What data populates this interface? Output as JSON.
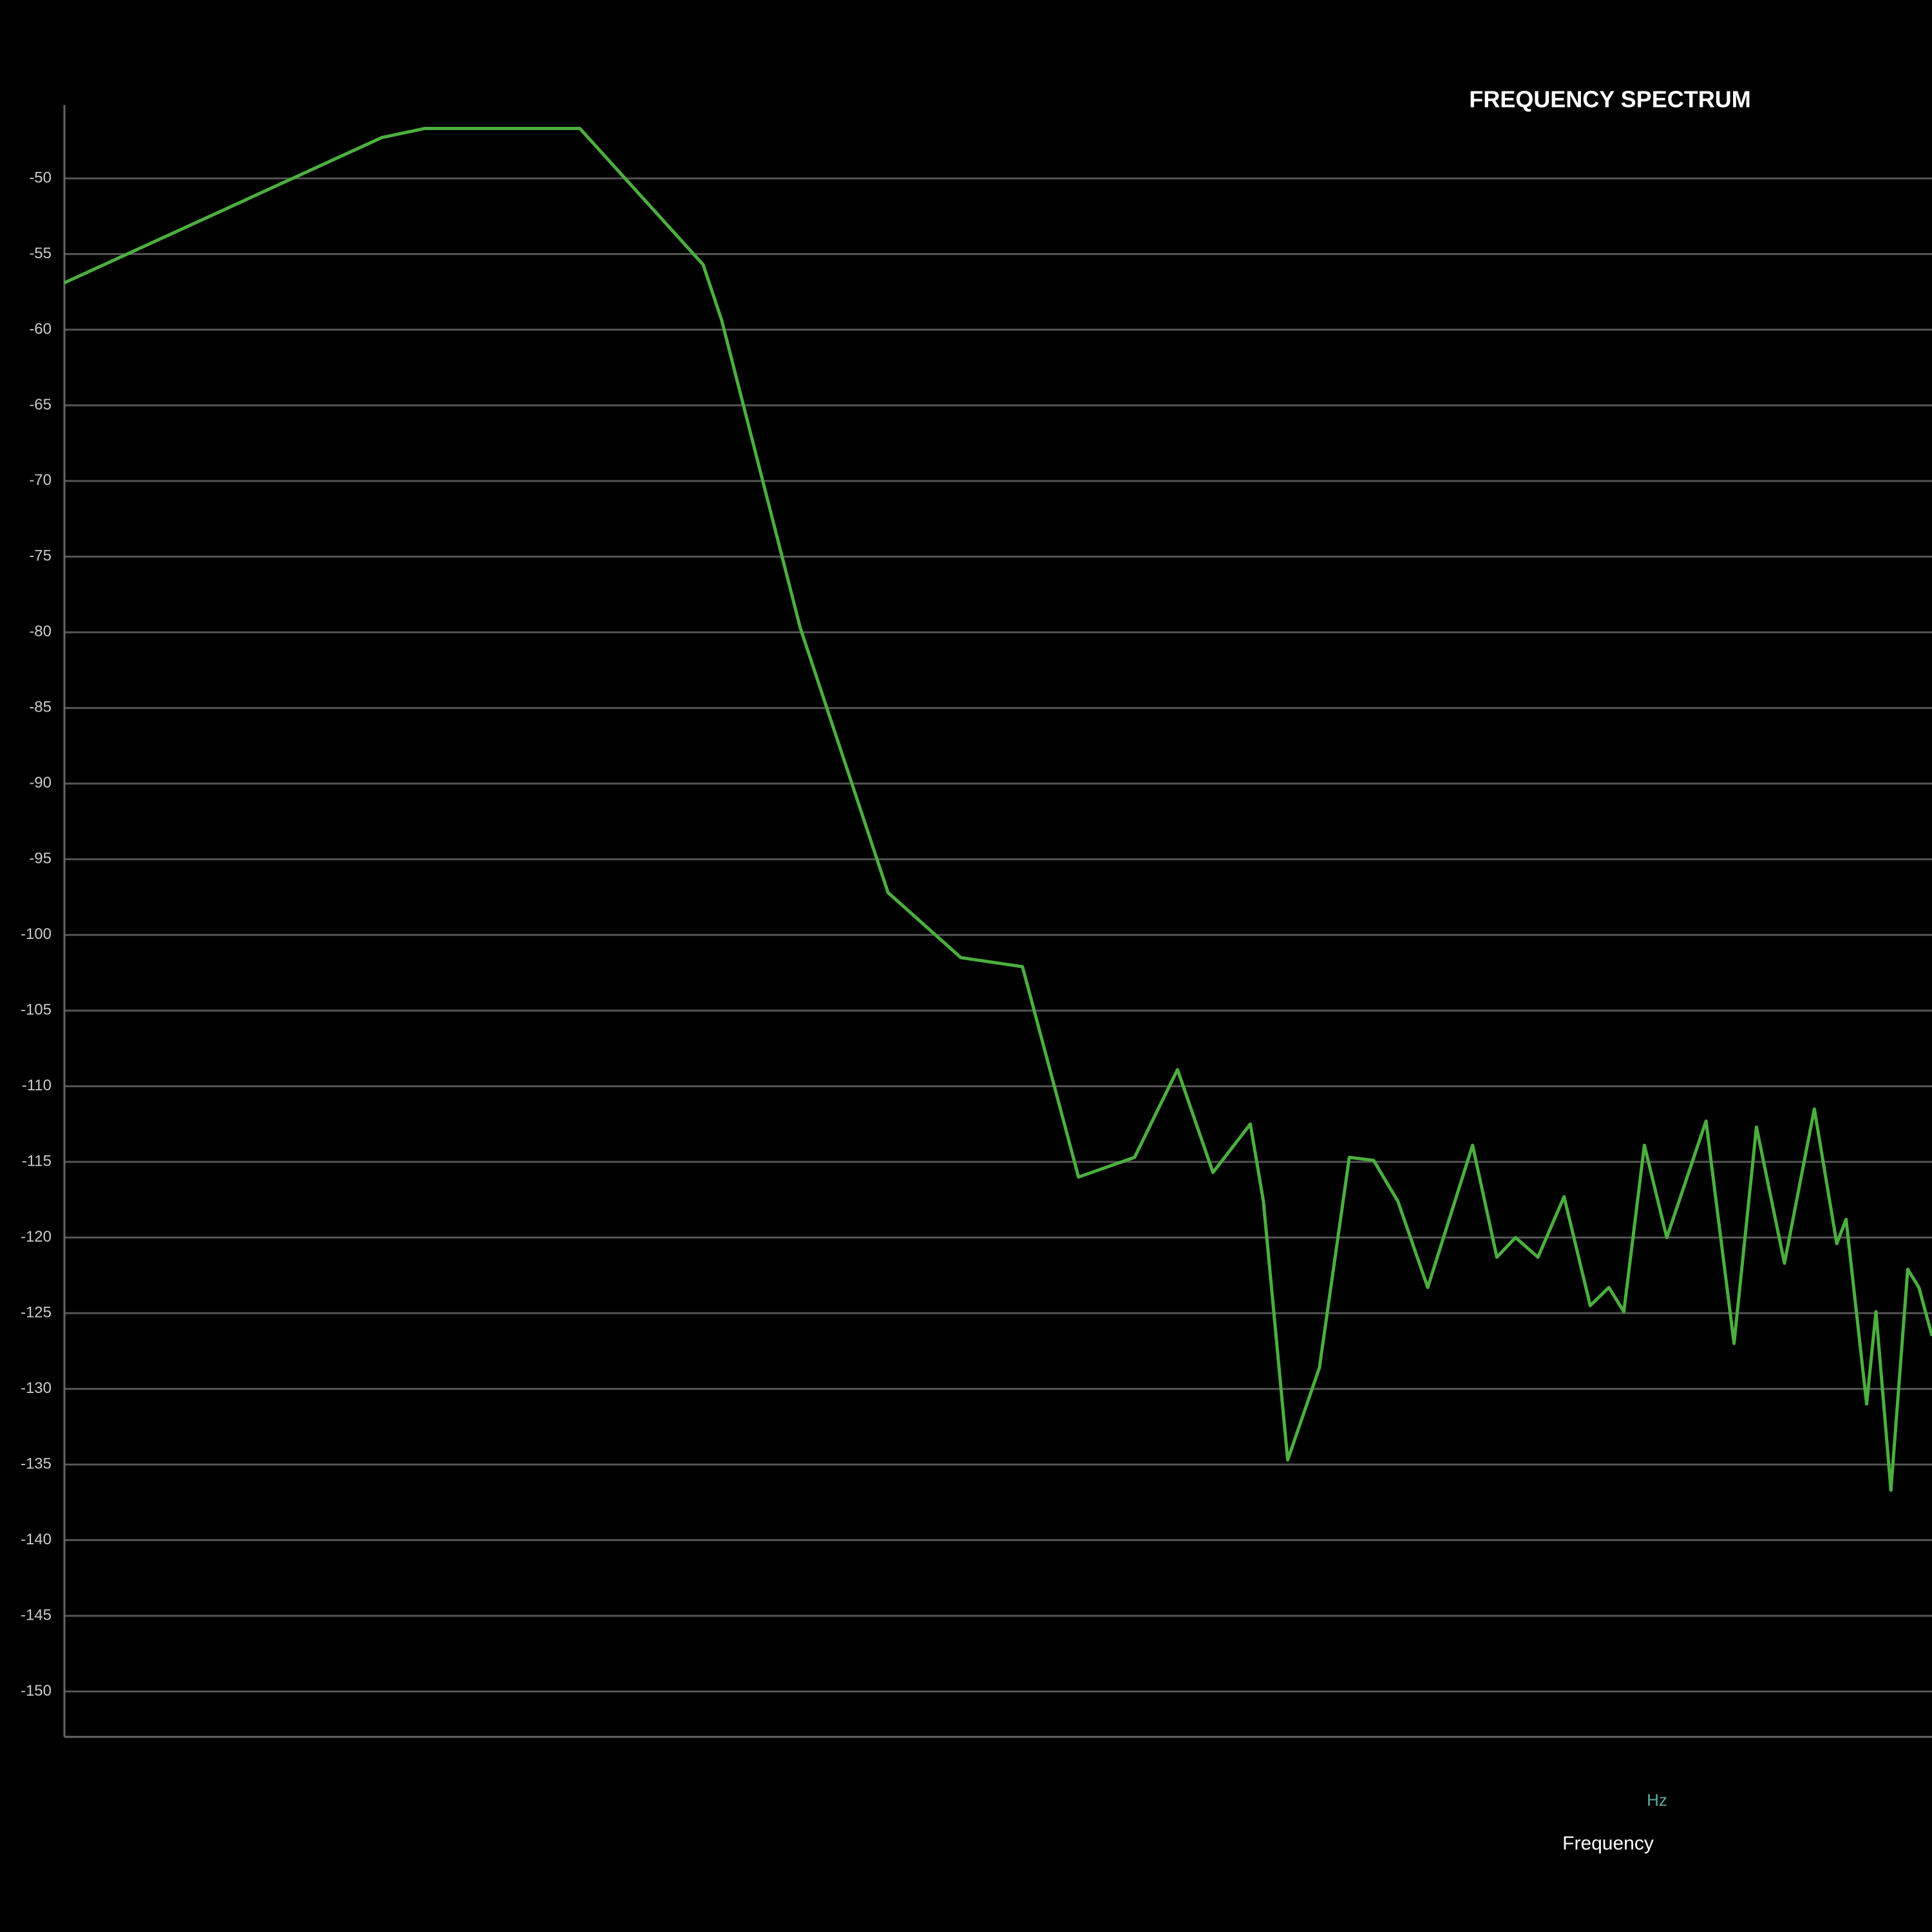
{
  "chart_data": {
    "type": "line",
    "title": "FREQUENCY SPECTRUM",
    "x_unit": "Hz",
    "x_label": "Frequency",
    "x": [
      0,
      17.0,
      19.3,
      25.9,
      27.6,
      34.2,
      35.2,
      39.4,
      44.1,
      48.0,
      51.3,
      54.3,
      57.3,
      59.6,
      61.5,
      63.5,
      64.2,
      65.5,
      67.2,
      68.8,
      70.1,
      71.4,
      73.0,
      75.4,
      76.7,
      77.7,
      78.9,
      80.3,
      81.7,
      82.7,
      83.5,
      84.6,
      85.8,
      87.9,
      89.4,
      90.6,
      92.1,
      93.7,
      94.9,
      95.4,
      96.5,
      97.0,
      97.8,
      98.7,
      99.3,
      100
    ],
    "series": [
      {
        "color": "#4caf3f",
        "values": [
          -56.9,
          -47.3,
          -46.7,
          -46.7,
          -46.7,
          -55.7,
          -59.4,
          -79.7,
          -97.2,
          -101.5,
          -102.1,
          -116.0,
          -114.7,
          -108.9,
          -115.7,
          -112.5,
          -117.6,
          -134.7,
          -128.6,
          -114.7,
          -114.9,
          -117.6,
          -123.3,
          -113.9,
          -121.3,
          -120.0,
          -121.3,
          -117.3,
          -124.5,
          -123.3,
          -124.9,
          -113.9,
          -120.0,
          -112.3,
          -127.0,
          -112.7,
          -121.7,
          -111.5,
          -120.4,
          -118.8,
          -131.0,
          -124.9,
          -136.7,
          -122.1,
          -123.3,
          -126.5
        ]
      }
    ],
    "xlim": [
      0,
      100
    ],
    "ylim": [
      -153,
      -46
    ],
    "yticks": [
      -50,
      -55,
      -60,
      -65,
      -70,
      -75,
      -80,
      -85,
      -90,
      -95,
      -100,
      -105,
      -110,
      -115,
      -120,
      -125,
      -130,
      -135,
      -140,
      -145,
      -150
    ],
    "grid": true
  }
}
